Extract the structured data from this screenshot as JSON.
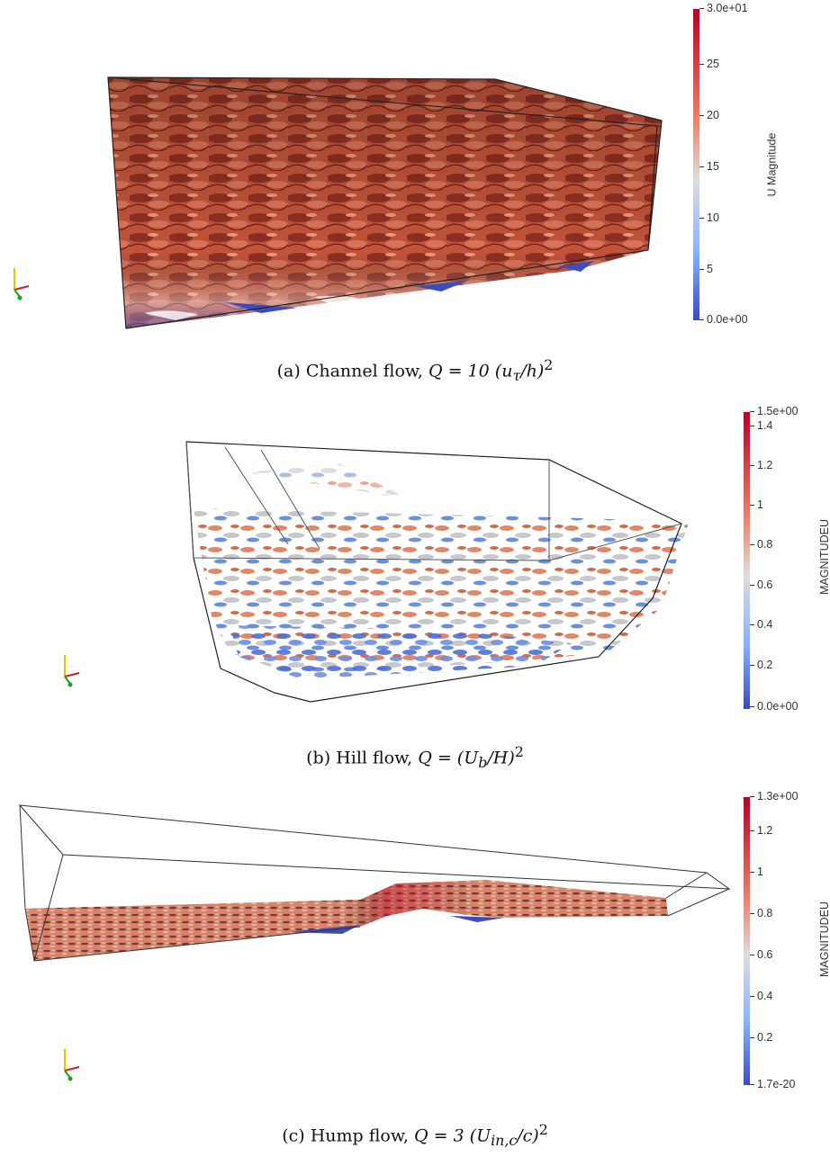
{
  "panels": [
    {
      "caption_label": "(a) Channel flow,",
      "caption_formula": "Q = 10 (u",
      "caption_sub": "τ",
      "caption_rest": "/h)",
      "caption_sup": "2",
      "colorbar": {
        "title": "U Magnitude",
        "ticks": [
          "3.0e+01",
          "25",
          "20",
          "15",
          "10",
          "5",
          "0.0e+00"
        ]
      }
    },
    {
      "caption_label": "(b) Hill flow,",
      "caption_formula": "Q = (U",
      "caption_sub": "b",
      "caption_rest": "/H)",
      "caption_sup": "2",
      "colorbar": {
        "title": "MAGNITUDEU",
        "ticks": [
          "1.5e+00",
          "1.4",
          "1.2",
          "1",
          "0.8",
          "0.6",
          "0.4",
          "0.2",
          "0.0e+00"
        ]
      }
    },
    {
      "caption_label": "(c) Hump flow,",
      "caption_formula": "Q = 3 (U",
      "caption_sub": "in,c",
      "caption_rest": "/c)",
      "caption_sup": "2",
      "colorbar": {
        "title": "MAGNITUDEU",
        "ticks": [
          "1.3e+00",
          "1.2",
          "1",
          "0.8",
          "0.6",
          "0.4",
          "0.2",
          "1.7e-20"
        ]
      }
    }
  ],
  "colormap": {
    "low": "#3b4cc0",
    "mid": "#dddddd",
    "high": "#b40426"
  }
}
